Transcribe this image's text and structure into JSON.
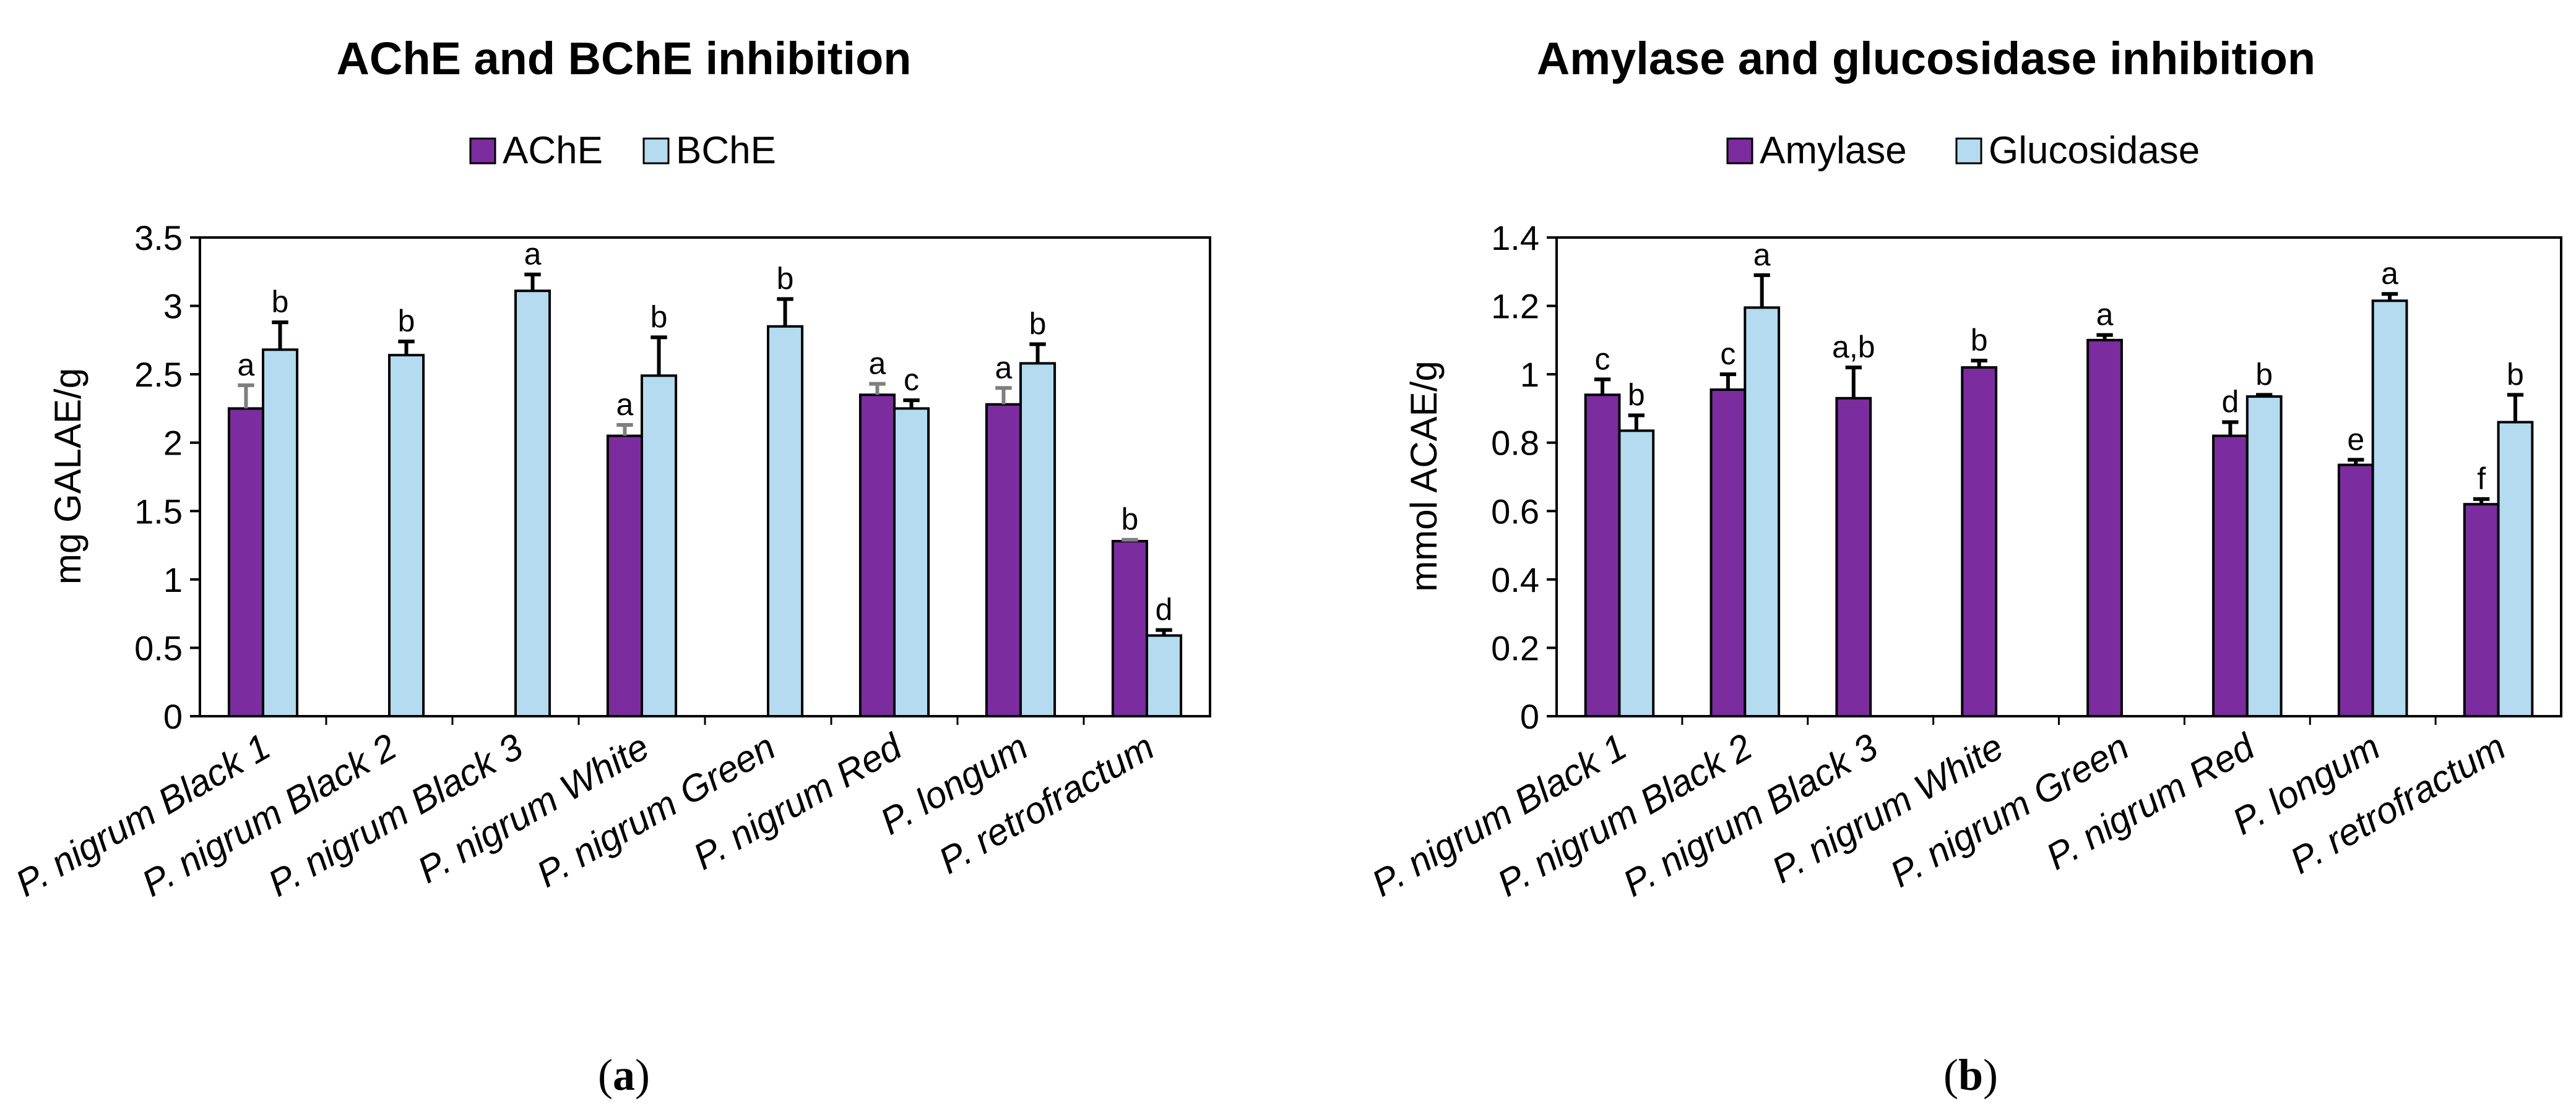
{
  "colors": {
    "series1": "#7B2C9E",
    "series2": "#B4DBF0",
    "stroke": "#000000",
    "errorbar_gray": "#7f7f7f"
  },
  "chart_data": [
    {
      "type": "bar",
      "panel_label": "(a)",
      "panel_letter": "a",
      "title": "AChE and BChE inhibition",
      "xlabel": "",
      "ylabel": "mg GALAE/g",
      "ylim": [
        0,
        3.5
      ],
      "ytick_step": 0.5,
      "yticks": [
        "0",
        "0.5",
        "1",
        "1.5",
        "2",
        "2.5",
        "3",
        "3.5"
      ],
      "legend_position": "top-center",
      "categories": [
        "P. nigrum Black 1",
        "P. nigrum Black 2",
        "P. nigrum Black 3",
        "P. nigrum White",
        "P. nigrum Green",
        "P. nigrum Red",
        "P. longum",
        "P. retrofractum"
      ],
      "series": [
        {
          "name": "AChE",
          "values": [
            2.25,
            0,
            0,
            2.05,
            0,
            2.35,
            2.28,
            1.28
          ],
          "errors": [
            0.17,
            0,
            0,
            0.08,
            0,
            0.08,
            0.12,
            0.01
          ],
          "labels": [
            "a",
            "",
            "",
            "a",
            "",
            "a",
            "a",
            "b"
          ]
        },
        {
          "name": "BChE",
          "values": [
            2.68,
            2.64,
            3.11,
            2.49,
            2.85,
            2.25,
            2.58,
            0.59
          ],
          "errors": [
            0.2,
            0.1,
            0.12,
            0.28,
            0.2,
            0.06,
            0.14,
            0.04
          ],
          "labels": [
            "b",
            "b",
            "a",
            "b",
            "b",
            "c",
            "b",
            "d"
          ]
        }
      ]
    },
    {
      "type": "bar",
      "panel_label": "(b)",
      "panel_letter": "b",
      "title": "Amylase and glucosidase inhibition",
      "xlabel": "",
      "ylabel": "mmol ACAE/g",
      "ylim": [
        0,
        1.4
      ],
      "ytick_step": 0.2,
      "yticks": [
        "0",
        "0.2",
        "0.4",
        "0.6",
        "0.8",
        "1",
        "1.2",
        "1.4"
      ],
      "legend_position": "top-center",
      "categories": [
        "P. nigrum Black 1",
        "P. nigrum Black 2",
        "P. nigrum Black 3",
        "P. nigrum White",
        "P. nigrum Green",
        "P. nigrum Red",
        "P. longum",
        "P. retrofractum"
      ],
      "series": [
        {
          "name": "Amylase",
          "values": [
            0.94,
            0.955,
            0.93,
            1.02,
            1.1,
            0.82,
            0.735,
            0.62
          ],
          "errors": [
            0.045,
            0.045,
            0.09,
            0.02,
            0.015,
            0.04,
            0.015,
            0.015
          ],
          "labels": [
            "c",
            "c",
            "a,b",
            "b",
            "a",
            "d",
            "e",
            "f"
          ]
        },
        {
          "name": "Glucosidase",
          "values": [
            0.835,
            1.195,
            null,
            null,
            null,
            0.935,
            1.215,
            0.86
          ],
          "errors": [
            0.045,
            0.095,
            null,
            null,
            null,
            0.005,
            0.02,
            0.08
          ],
          "labels": [
            "b",
            "a",
            "",
            "",
            "",
            "b",
            "a",
            "b"
          ]
        }
      ]
    }
  ]
}
